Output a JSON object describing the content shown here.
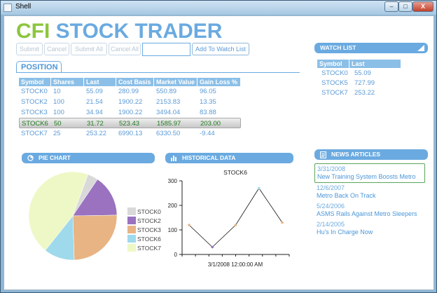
{
  "window": {
    "title": "Shell",
    "min": "–",
    "max": "□",
    "close": "X"
  },
  "brand": {
    "part1": "CFI",
    "part2": "STOCK TRADER"
  },
  "toolbar": {
    "submit": "Submit",
    "cancel": "Cancel",
    "submit_all": "Submit All",
    "cancel_all": "Cancel All",
    "symbol_input_value": "",
    "add_to_watch": "Add To Watch List"
  },
  "position": {
    "tab_label": "POSITION",
    "columns": [
      "Symbol",
      "Shares",
      "Last",
      "Cost Basis",
      "Market Value",
      "Gain Loss %"
    ],
    "rows": [
      [
        "STOCK0",
        "10",
        "55.09",
        "280.99",
        "550.89",
        "96.05"
      ],
      [
        "STOCK2",
        "100",
        "21.54",
        "1900.22",
        "2153.83",
        "13.35"
      ],
      [
        "STOCK3",
        "100",
        "34.94",
        "1900.22",
        "3494.04",
        "83.88"
      ],
      [
        "STOCK6",
        "50",
        "31.72",
        "523.43",
        "1585.97",
        "203.00"
      ],
      [
        "STOCK7",
        "25",
        "253.22",
        "6990.13",
        "6330.50",
        "-9.44"
      ]
    ],
    "selected_index": 3
  },
  "watchlist": {
    "title": "WATCH LIST",
    "columns": [
      "Symbol",
      "Last"
    ],
    "rows": [
      [
        "STOCK0",
        "55.09"
      ],
      [
        "STOCK5",
        "727.99"
      ],
      [
        "STOCK7",
        "253.22"
      ]
    ]
  },
  "pie": {
    "title": "PIE CHART",
    "legend": [
      "STOCK0",
      "STOCK2",
      "STOCK3",
      "STOCK6",
      "STOCK7"
    ],
    "colors": [
      "#d9d9d9",
      "#9a72c0",
      "#e8b483",
      "#9fd9ec",
      "#eef8c6"
    ],
    "values": [
      550.89,
      2153.83,
      3494.04,
      1585.97,
      6330.5
    ]
  },
  "historical": {
    "title": "HISTORICAL DATA",
    "chart_title": "STOCK6",
    "x_label": "3/1/2008 12:00:00 AM",
    "y_ticks": [
      "0",
      "100",
      "200",
      "300"
    ],
    "values": [
      120,
      30,
      120,
      270,
      130
    ]
  },
  "news": {
    "title": "NEWS ARTICLES",
    "items": [
      {
        "date": "3/31/2008",
        "title": "New Training System Boosts Metro"
      },
      {
        "date": "12/6/2007",
        "title": "Metro Back On Track"
      },
      {
        "date": "5/24/2006",
        "title": "ASMS Rails Against Metro Sleepers"
      },
      {
        "date": "2/14/2005",
        "title": "Hu's In Charge Now"
      }
    ],
    "selected_index": 0
  },
  "colors": {
    "accent": "#6aaae0",
    "brand_green": "#8cc63e",
    "header_blue": "#8bbfe7"
  }
}
